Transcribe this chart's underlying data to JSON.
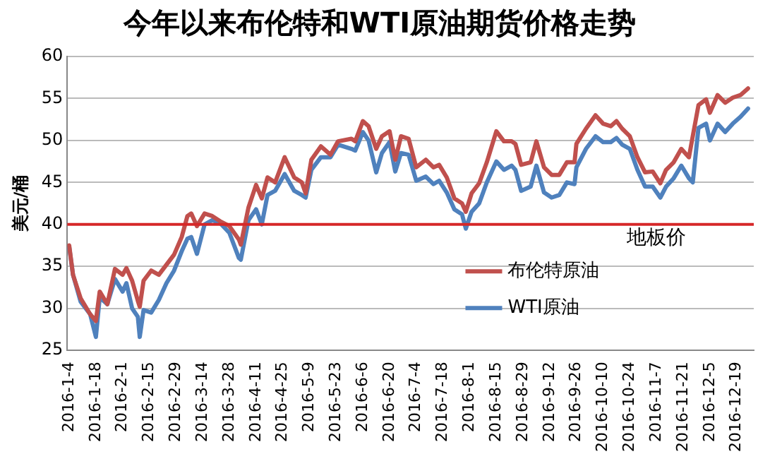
{
  "chart_data": {
    "type": "line",
    "title": "今年以来布伦特和WTI原油期货价格走势",
    "ylabel": "美元/桶",
    "x": [
      "2016-01-04",
      "2016-01-06",
      "2016-01-10",
      "2016-01-15",
      "2016-01-18",
      "2016-01-20",
      "2016-01-24",
      "2016-01-28",
      "2016-02-01",
      "2016-02-03",
      "2016-02-06",
      "2016-02-09",
      "2016-02-10",
      "2016-02-12",
      "2016-02-16",
      "2016-02-20",
      "2016-02-24",
      "2016-02-28",
      "2016-03-03",
      "2016-03-06",
      "2016-03-08",
      "2016-03-11",
      "2016-03-15",
      "2016-03-19",
      "2016-03-23",
      "2016-03-28",
      "2016-04-02",
      "2016-04-03",
      "2016-04-07",
      "2016-04-11",
      "2016-04-14",
      "2016-04-17",
      "2016-04-21",
      "2016-04-26",
      "2016-05-01",
      "2016-05-05",
      "2016-05-07",
      "2016-05-10",
      "2016-05-15",
      "2016-05-20",
      "2016-05-24",
      "2016-05-31",
      "2016-06-02",
      "2016-06-06",
      "2016-06-09",
      "2016-06-13",
      "2016-06-16",
      "2016-06-20",
      "2016-06-23",
      "2016-06-26",
      "2016-06-30",
      "2016-07-04",
      "2016-07-09",
      "2016-07-13",
      "2016-07-16",
      "2016-07-20",
      "2016-07-24",
      "2016-07-28",
      "2016-07-30",
      "2016-08-02",
      "2016-08-06",
      "2016-08-10",
      "2016-08-15",
      "2016-08-19",
      "2016-08-23",
      "2016-08-25",
      "2016-08-28",
      "2016-09-02",
      "2016-09-05",
      "2016-09-09",
      "2016-09-13",
      "2016-09-17",
      "2016-09-21",
      "2016-09-25",
      "2016-09-26",
      "2016-10-01",
      "2016-10-06",
      "2016-10-10",
      "2016-10-14",
      "2016-10-17",
      "2016-10-20",
      "2016-10-24",
      "2016-10-28",
      "2016-11-01",
      "2016-11-05",
      "2016-11-09",
      "2016-11-12",
      "2016-11-16",
      "2016-11-20",
      "2016-11-24",
      "2016-11-26",
      "2016-11-29",
      "2016-12-03",
      "2016-12-05",
      "2016-12-09",
      "2016-12-13",
      "2016-12-17",
      "2016-12-21",
      "2016-12-25"
    ],
    "series": [
      {
        "name": "布伦特原油",
        "color": "#c0504d",
        "values": [
          37.5,
          34,
          31.2,
          29.3,
          28.5,
          32,
          30.5,
          34.7,
          34,
          34.8,
          33.3,
          30.9,
          30.2,
          33.3,
          34.5,
          34,
          35.2,
          36.4,
          38.5,
          41,
          41.3,
          39.8,
          41.3,
          41,
          40.4,
          39.8,
          38.2,
          37.6,
          42,
          44.7,
          43.1,
          45.6,
          45,
          48,
          45.6,
          45,
          43.7,
          47.7,
          49.3,
          48.3,
          49.9,
          50.2,
          49.9,
          52.3,
          51.7,
          49,
          50.5,
          51.1,
          47.7,
          50.5,
          50.2,
          46.8,
          47.7,
          46.8,
          47.1,
          45.6,
          43.1,
          42.5,
          41.5,
          43.7,
          44.9,
          47.4,
          51.1,
          49.9,
          49.9,
          49.6,
          47.1,
          47.4,
          49.9,
          46.8,
          45.9,
          45.9,
          47.4,
          47.4,
          49.6,
          51.4,
          53,
          52,
          51.7,
          52.3,
          51.4,
          50.5,
          48,
          46.2,
          46.3,
          44.9,
          46.5,
          47.4,
          49,
          48,
          50.5,
          54.2,
          54.9,
          53.3,
          55.4,
          54.5,
          55.1,
          55.4,
          56.2
        ]
      },
      {
        "name": "WTI原油",
        "color": "#4f81bd",
        "values": [
          37.3,
          34,
          30.8,
          29.3,
          26.6,
          31.3,
          30.5,
          33.5,
          32,
          33,
          30,
          29,
          26.6,
          29.8,
          29.5,
          31,
          33,
          34.5,
          36.8,
          38.3,
          38.5,
          36.5,
          40,
          40.5,
          40.2,
          39,
          36,
          35.8,
          40.5,
          41.8,
          40,
          43.5,
          44,
          46,
          44,
          43.5,
          43.2,
          46.5,
          48,
          48,
          49.5,
          49,
          48.8,
          51,
          50,
          46.2,
          48.5,
          49.8,
          46.3,
          48.5,
          48.3,
          45.2,
          45.7,
          44.8,
          45.2,
          43.8,
          41.8,
          41.2,
          39.5,
          41.5,
          42.5,
          45,
          47.5,
          46.5,
          47,
          46.5,
          44,
          44.5,
          47,
          43.8,
          43.2,
          43.5,
          45,
          44.8,
          46.8,
          49,
          50.5,
          49.8,
          49.8,
          50.3,
          49.5,
          49,
          46.5,
          44.5,
          44.5,
          43.2,
          44.5,
          45.5,
          47,
          45.5,
          45,
          51.5,
          52,
          50,
          52,
          51,
          52,
          52.8,
          53.8
        ]
      }
    ],
    "xlim": [
      "2016-01-03",
      "2016-12-28"
    ],
    "xticks": [
      {
        "value": "2016-01-04",
        "label": "2016-1-4"
      },
      {
        "value": "2016-01-18",
        "label": "2016-1-18"
      },
      {
        "value": "2016-02-01",
        "label": "2016-2-1"
      },
      {
        "value": "2016-02-15",
        "label": "2016-2-15"
      },
      {
        "value": "2016-02-29",
        "label": "2016-2-29"
      },
      {
        "value": "2016-03-14",
        "label": "2016-3-14"
      },
      {
        "value": "2016-03-28",
        "label": "2016-3-28"
      },
      {
        "value": "2016-04-11",
        "label": "2016-4-11"
      },
      {
        "value": "2016-04-25",
        "label": "2016-4-25"
      },
      {
        "value": "2016-05-09",
        "label": "2016-5-9"
      },
      {
        "value": "2016-05-23",
        "label": "2016-5-23"
      },
      {
        "value": "2016-06-06",
        "label": "2016-6-6"
      },
      {
        "value": "2016-06-20",
        "label": "2016-6-20"
      },
      {
        "value": "2016-07-04",
        "label": "2016-7-4"
      },
      {
        "value": "2016-07-18",
        "label": "2016-7-18"
      },
      {
        "value": "2016-08-01",
        "label": "2016-8-1"
      },
      {
        "value": "2016-08-15",
        "label": "2016-8-15"
      },
      {
        "value": "2016-08-29",
        "label": "2016-8-29"
      },
      {
        "value": "2016-09-12",
        "label": "2016-9-12"
      },
      {
        "value": "2016-09-26",
        "label": "2016-9-26"
      },
      {
        "value": "2016-10-10",
        "label": "2016-10-10"
      },
      {
        "value": "2016-10-24",
        "label": "2016-10-24"
      },
      {
        "value": "2016-11-07",
        "label": "2016-11-7"
      },
      {
        "value": "2016-11-21",
        "label": "2016-11-21"
      },
      {
        "value": "2016-12-05",
        "label": "2016-12-5"
      },
      {
        "value": "2016-12-19",
        "label": "2016-12-19"
      }
    ],
    "ylim": [
      25,
      60
    ],
    "yticks": [
      25,
      30,
      35,
      40,
      45,
      50,
      55,
      60
    ],
    "ref_lines": [
      {
        "axis": "y",
        "value": 40,
        "label": "地板价",
        "color": "#d62728"
      }
    ],
    "grid": "y",
    "legend": "bottom right",
    "marker": "none",
    "line_style": "solid"
  }
}
